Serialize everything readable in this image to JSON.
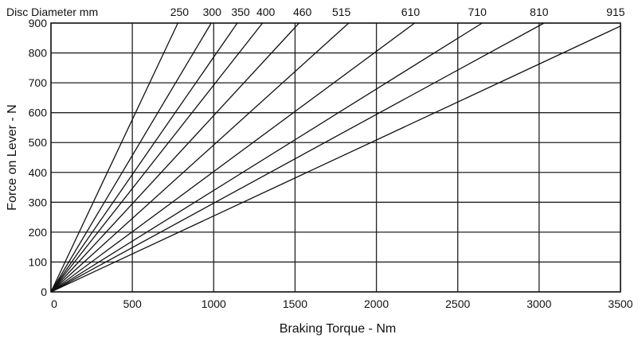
{
  "chart_data": {
    "type": "line",
    "title": "",
    "xlabel": "Braking Torque - Nm",
    "ylabel": "Force on Lever - N",
    "xlim": [
      0,
      3500
    ],
    "ylim": [
      0,
      900
    ],
    "xticks": [
      0,
      500,
      1000,
      1500,
      2000,
      2500,
      3000,
      3500
    ],
    "yticks": [
      0,
      100,
      200,
      300,
      400,
      500,
      600,
      700,
      800,
      900
    ],
    "grid": true,
    "legend_title": "Disc Diameter mm",
    "series": [
      {
        "name": "250",
        "points": [
          [
            0,
            0
          ],
          [
            780,
            900
          ]
        ]
      },
      {
        "name": "300",
        "points": [
          [
            0,
            0
          ],
          [
            985,
            900
          ]
        ]
      },
      {
        "name": "350",
        "points": [
          [
            0,
            0
          ],
          [
            1145,
            900
          ]
        ]
      },
      {
        "name": "400",
        "points": [
          [
            0,
            0
          ],
          [
            1300,
            900
          ]
        ]
      },
      {
        "name": "460",
        "points": [
          [
            0,
            0
          ],
          [
            1525,
            900
          ]
        ]
      },
      {
        "name": "515",
        "points": [
          [
            0,
            0
          ],
          [
            1830,
            900
          ]
        ]
      },
      {
        "name": "610",
        "points": [
          [
            0,
            0
          ],
          [
            2235,
            900
          ]
        ]
      },
      {
        "name": "710",
        "points": [
          [
            0,
            0
          ],
          [
            2650,
            900
          ]
        ]
      },
      {
        "name": "810",
        "points": [
          [
            0,
            0
          ],
          [
            3030,
            900
          ]
        ]
      },
      {
        "name": "915",
        "points": [
          [
            0,
            0
          ],
          [
            3500,
            890
          ]
        ]
      }
    ],
    "series_label_positions": [
      {
        "name": "250",
        "x": 790
      },
      {
        "name": "300",
        "x": 990
      },
      {
        "name": "350",
        "x": 1165
      },
      {
        "name": "400",
        "x": 1320
      },
      {
        "name": "460",
        "x": 1545
      },
      {
        "name": "515",
        "x": 1785
      },
      {
        "name": "610",
        "x": 2210
      },
      {
        "name": "710",
        "x": 2620
      },
      {
        "name": "810",
        "x": 3000
      },
      {
        "name": "915",
        "x": 3470
      }
    ]
  }
}
